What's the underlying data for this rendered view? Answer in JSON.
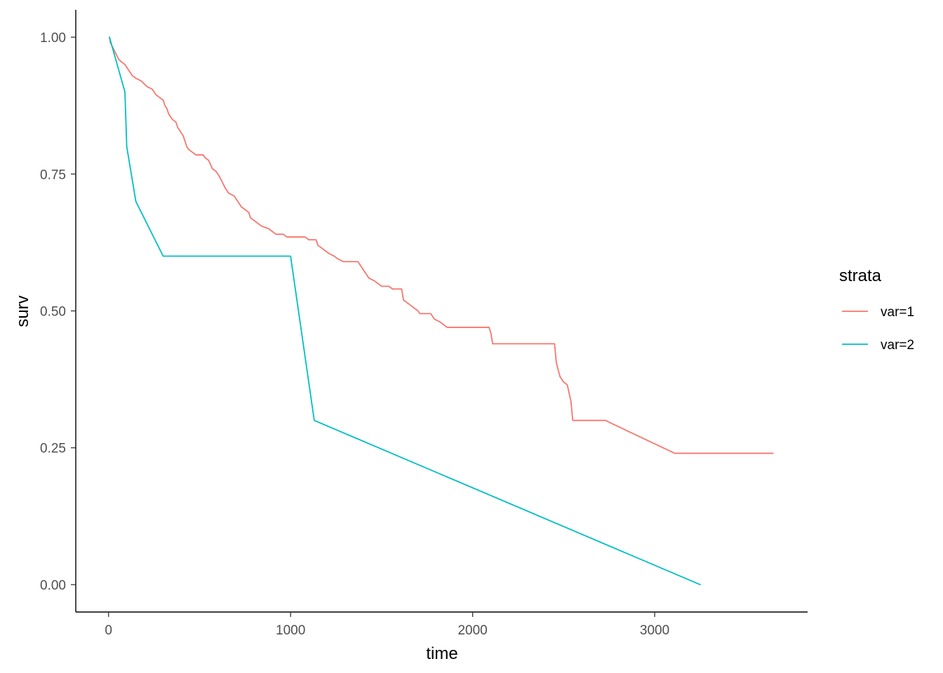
{
  "chart_data": {
    "type": "line",
    "xlabel": "time",
    "ylabel": "surv",
    "xlim": [
      -180,
      3840
    ],
    "ylim": [
      -0.05,
      1.05
    ],
    "x_ticks": [
      0,
      1000,
      2000,
      3000
    ],
    "y_ticks": [
      0.0,
      0.25,
      0.5,
      0.75,
      1.0
    ],
    "x_tick_labels": [
      "0",
      "1000",
      "2000",
      "3000"
    ],
    "y_tick_labels": [
      "0.00",
      "0.25",
      "0.50",
      "0.75",
      "1.00"
    ],
    "grid": false,
    "legend": {
      "title": "strata",
      "position": "right"
    },
    "series": [
      {
        "name": "var=1",
        "color": "#F8766D",
        "points": [
          [
            5,
            1.0
          ],
          [
            10,
            0.99
          ],
          [
            25,
            0.98
          ],
          [
            40,
            0.97
          ],
          [
            55,
            0.96
          ],
          [
            70,
            0.955
          ],
          [
            90,
            0.95
          ],
          [
            110,
            0.94
          ],
          [
            130,
            0.93
          ],
          [
            150,
            0.925
          ],
          [
            180,
            0.92
          ],
          [
            195,
            0.915
          ],
          [
            210,
            0.91
          ],
          [
            240,
            0.905
          ],
          [
            250,
            0.9
          ],
          [
            260,
            0.895
          ],
          [
            280,
            0.89
          ],
          [
            300,
            0.885
          ],
          [
            310,
            0.875
          ],
          [
            320,
            0.87
          ],
          [
            330,
            0.86
          ],
          [
            340,
            0.855
          ],
          [
            350,
            0.85
          ],
          [
            370,
            0.845
          ],
          [
            380,
            0.835
          ],
          [
            390,
            0.83
          ],
          [
            400,
            0.825
          ],
          [
            410,
            0.82
          ],
          [
            420,
            0.81
          ],
          [
            430,
            0.8
          ],
          [
            440,
            0.795
          ],
          [
            460,
            0.79
          ],
          [
            480,
            0.785
          ],
          [
            520,
            0.785
          ],
          [
            530,
            0.78
          ],
          [
            550,
            0.775
          ],
          [
            570,
            0.76
          ],
          [
            590,
            0.755
          ],
          [
            610,
            0.745
          ],
          [
            625,
            0.735
          ],
          [
            640,
            0.725
          ],
          [
            660,
            0.715
          ],
          [
            690,
            0.71
          ],
          [
            710,
            0.7
          ],
          [
            730,
            0.69
          ],
          [
            750,
            0.685
          ],
          [
            770,
            0.68
          ],
          [
            780,
            0.67
          ],
          [
            800,
            0.665
          ],
          [
            820,
            0.66
          ],
          [
            840,
            0.655
          ],
          [
            880,
            0.65
          ],
          [
            900,
            0.645
          ],
          [
            920,
            0.64
          ],
          [
            960,
            0.64
          ],
          [
            980,
            0.635
          ],
          [
            1000,
            0.635
          ],
          [
            1080,
            0.635
          ],
          [
            1100,
            0.63
          ],
          [
            1140,
            0.63
          ],
          [
            1150,
            0.62
          ],
          [
            1170,
            0.615
          ],
          [
            1190,
            0.61
          ],
          [
            1210,
            0.605
          ],
          [
            1240,
            0.6
          ],
          [
            1260,
            0.595
          ],
          [
            1290,
            0.59
          ],
          [
            1370,
            0.59
          ],
          [
            1390,
            0.58
          ],
          [
            1410,
            0.57
          ],
          [
            1430,
            0.56
          ],
          [
            1460,
            0.555
          ],
          [
            1480,
            0.55
          ],
          [
            1500,
            0.545
          ],
          [
            1540,
            0.545
          ],
          [
            1560,
            0.54
          ],
          [
            1610,
            0.54
          ],
          [
            1620,
            0.52
          ],
          [
            1640,
            0.515
          ],
          [
            1660,
            0.51
          ],
          [
            1680,
            0.505
          ],
          [
            1700,
            0.5
          ],
          [
            1710,
            0.495
          ],
          [
            1770,
            0.495
          ],
          [
            1790,
            0.485
          ],
          [
            1820,
            0.48
          ],
          [
            1840,
            0.475
          ],
          [
            1860,
            0.47
          ],
          [
            2090,
            0.47
          ],
          [
            2100,
            0.46
          ],
          [
            2110,
            0.44
          ],
          [
            2450,
            0.44
          ],
          [
            2460,
            0.405
          ],
          [
            2480,
            0.38
          ],
          [
            2500,
            0.37
          ],
          [
            2520,
            0.365
          ],
          [
            2540,
            0.335
          ],
          [
            2550,
            0.3
          ],
          [
            2730,
            0.3
          ],
          [
            2760,
            0.295
          ],
          [
            3110,
            0.24
          ],
          [
            3650,
            0.24
          ]
        ]
      },
      {
        "name": "var=2",
        "color": "#00BFC4",
        "points": [
          [
            5,
            1.0
          ],
          [
            90,
            0.9
          ],
          [
            100,
            0.8
          ],
          [
            150,
            0.7
          ],
          [
            300,
            0.6
          ],
          [
            1000,
            0.6
          ],
          [
            1130,
            0.3
          ],
          [
            3250,
            0.0
          ]
        ]
      }
    ]
  }
}
